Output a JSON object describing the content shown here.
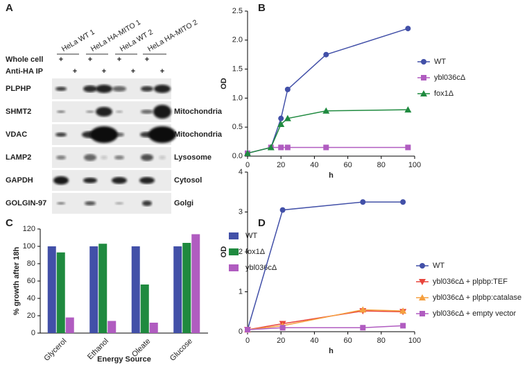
{
  "blot": {
    "panel": "A",
    "lanes": [
      "HeLa WT 1",
      "HeLa HA-MITO 1",
      "HeLa WT 2",
      "HeLa HA-MITO 2"
    ],
    "conditions": [
      "Whole cell",
      "Anti-HA IP"
    ],
    "marker": "+",
    "rows": [
      {
        "protein": "PLPHP",
        "location": null
      },
      {
        "protein": "SHMT2",
        "location": "Mitochondria"
      },
      {
        "protein": "VDAC",
        "location": "Mitochondria"
      },
      {
        "protein": "LAMP2",
        "location": "Lysosome"
      },
      {
        "protein": "GAPDH",
        "location": "Cytosol"
      },
      {
        "protein": "GOLGIN-97",
        "location": "Golgi"
      }
    ]
  },
  "chart_data": [
    {
      "type": "line",
      "panel": "B",
      "xlabel": "h",
      "ylabel": "OD",
      "x": [
        0,
        14,
        20,
        24,
        47,
        96
      ],
      "xlim": [
        0,
        100
      ],
      "xticks": [
        0,
        20,
        40,
        60,
        80,
        100
      ],
      "ylim": [
        0,
        2.5
      ],
      "yticks": [
        {
          "value": 0,
          "label": "0.0"
        },
        0.5,
        {
          "value": 1,
          "label": "1.0"
        },
        1.5,
        {
          "value": 2,
          "label": "2.0"
        },
        2.5
      ],
      "legend": "right",
      "series": [
        {
          "name": "WT",
          "color": "#4250a8",
          "marker": "circle",
          "values": [
            0.05,
            0.15,
            0.65,
            1.15,
            1.75,
            2.2
          ]
        },
        {
          "name": "ybl036cΔ",
          "color": "#b05cc0",
          "marker": "square",
          "values": [
            0.05,
            0.15,
            0.15,
            0.15,
            0.15,
            0.15
          ]
        },
        {
          "name": "fox1Δ",
          "color": "#1f8a3f",
          "marker": "triangle-up",
          "values": [
            0.05,
            0.15,
            0.55,
            0.65,
            0.78,
            0.8
          ]
        }
      ]
    },
    {
      "type": "bar",
      "panel": "C",
      "xlabel": "Energy Source",
      "ylabel": "% growth after 18h",
      "categories": [
        "Glycerol",
        "Ethanol",
        "Oleate",
        "Glucose"
      ],
      "ylim": [
        0,
        120
      ],
      "yticks": [
        0,
        20,
        40,
        60,
        80,
        100,
        120
      ],
      "legend": "right",
      "series": [
        {
          "name": "WT",
          "color": "#4250a8",
          "values": [
            100,
            100,
            100,
            100
          ]
        },
        {
          "name": "fox1Δ",
          "color": "#1f8a3f",
          "values": [
            93,
            103,
            56,
            104
          ]
        },
        {
          "name": "ybl036cΔ",
          "color": "#b05cc0",
          "values": [
            18,
            14,
            12,
            114
          ]
        }
      ]
    },
    {
      "type": "line",
      "panel": "D",
      "xlabel": "h",
      "ylabel": "OD",
      "x": [
        0,
        21,
        69,
        93
      ],
      "xlim": [
        0,
        100
      ],
      "xticks": [
        0,
        20,
        40,
        60,
        80,
        100
      ],
      "ylim": [
        0,
        4
      ],
      "yticks": [
        0,
        1,
        2,
        3,
        4
      ],
      "legend": "right",
      "series": [
        {
          "name": "WT",
          "color": "#4250a8",
          "marker": "circle",
          "values": [
            0.05,
            3.05,
            3.25,
            3.25
          ]
        },
        {
          "name": "ybl036cΔ + plpbp:TEF",
          "color": "#e8453c",
          "marker": "triangle-down",
          "values": [
            0.05,
            0.2,
            0.52,
            0.5
          ]
        },
        {
          "name": "ybl036cΔ + plpbp:catalase",
          "color": "#f5a040",
          "marker": "triangle-up",
          "values": [
            0.05,
            0.15,
            0.55,
            0.52
          ]
        },
        {
          "name": "ybl036cΔ + empty vector",
          "color": "#b05cc0",
          "marker": "square",
          "values": [
            0.05,
            0.1,
            0.1,
            0.15
          ]
        }
      ]
    }
  ]
}
